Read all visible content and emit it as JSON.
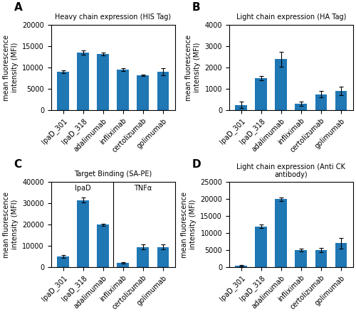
{
  "chart_data": [
    {
      "type": "bar",
      "title": "Heavy chain expression (HIS Tag)",
      "categories": [
        "IpaD_301",
        "IpaD_318",
        "adalimumab",
        "infliximab",
        "certolizumab",
        "golimumab"
      ],
      "values": [
        9000,
        13500,
        13200,
        9500,
        8200,
        9000
      ],
      "errors": [
        300,
        500,
        300,
        300,
        200,
        800
      ],
      "ylabel": "mean fluorescence\nintensity (MFI)",
      "ylim": [
        0,
        20000
      ],
      "yticks": [
        0,
        5000,
        10000,
        15000,
        20000
      ],
      "annotations": [
        {
          "text": "A"
        }
      ]
    },
    {
      "type": "bar",
      "title": "Light chain expression (HA Tag)",
      "categories": [
        "IpaD_301",
        "IpaD_318",
        "adalimumab",
        "infliximab",
        "certolizumab",
        "golimumab"
      ],
      "values": [
        250,
        1500,
        2400,
        300,
        750,
        900
      ],
      "errors": [
        150,
        100,
        350,
        100,
        150,
        200
      ],
      "ylabel": "mean fluorescence\nintensity (MFI)",
      "ylim": [
        0,
        4000
      ],
      "yticks": [
        0,
        1000,
        2000,
        3000,
        4000
      ],
      "annotations": [
        {
          "text": "B"
        }
      ]
    },
    {
      "type": "bar",
      "title": "Target Binding (SA-PE)",
      "categories": [
        "IpaD_301",
        "IpaD_318",
        "adalimumab",
        "infliximab",
        "certolizumab",
        "golimumab"
      ],
      "values": [
        5000,
        31500,
        20000,
        2000,
        9500,
        9500
      ],
      "errors": [
        800,
        1200,
        500,
        300,
        1200,
        1200
      ],
      "ylabel": "mean fluorescence\nintensity (MFI)",
      "ylim": [
        0,
        40000
      ],
      "yticks": [
        0,
        10000,
        20000,
        30000,
        40000
      ],
      "annotations": [
        {
          "text": "C"
        }
      ],
      "groups": [
        {
          "label": "IpaD",
          "categories": [
            "IpaD_301",
            "IpaD_318",
            "adalimumab"
          ]
        },
        {
          "label": "TNFα",
          "categories": [
            "infliximab",
            "certolizumab",
            "golimumab"
          ]
        }
      ]
    },
    {
      "type": "bar",
      "title": "Light chain expression (Anti CK antibody)",
      "categories": [
        "IpaD_301",
        "IpaD_318",
        "adalimumab",
        "infliximab",
        "certolizumab",
        "golimumab"
      ],
      "values": [
        500,
        12000,
        20000,
        5000,
        5000,
        7000
      ],
      "errors": [
        200,
        500,
        500,
        400,
        600,
        1500
      ],
      "ylabel": "mean fluorescence\nintensity (MFI)",
      "ylim": [
        0,
        25000
      ],
      "yticks": [
        0,
        5000,
        10000,
        15000,
        20000,
        25000
      ],
      "annotations": [
        {
          "text": "D"
        }
      ]
    }
  ]
}
